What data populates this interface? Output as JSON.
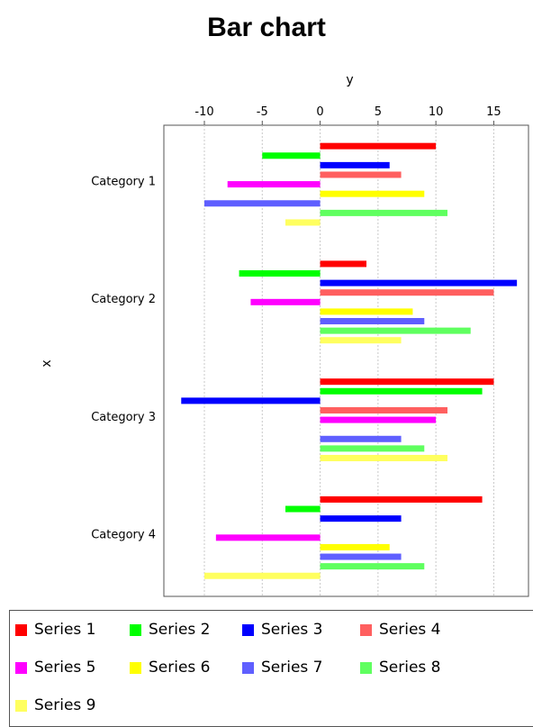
{
  "chart_data": {
    "type": "bar",
    "orientation": "horizontal",
    "title": "Bar chart",
    "xlabel": "x",
    "ylabel": "y",
    "value_axis_position": "top",
    "xlim": [
      -13.5,
      18
    ],
    "ticks": [
      -10,
      -5,
      0,
      5,
      10,
      15
    ],
    "grid": true,
    "legend_position": "bottom",
    "categories": [
      "Category 1",
      "Category 2",
      "Category 3",
      "Category 4"
    ],
    "series": [
      {
        "name": "Series 1",
        "color": "#ff0000",
        "values": [
          10,
          4,
          15,
          14
        ]
      },
      {
        "name": "Series 2",
        "color": "#00ff00",
        "values": [
          -5,
          -7,
          14,
          -3
        ]
      },
      {
        "name": "Series 3",
        "color": "#0000ff",
        "values": [
          6,
          17,
          -12,
          7
        ]
      },
      {
        "name": "Series 4",
        "color": "#ff5f5f",
        "values": [
          7,
          15,
          11,
          0
        ]
      },
      {
        "name": "Series 5",
        "color": "#ff00ff",
        "values": [
          -8,
          -6,
          10,
          -9
        ]
      },
      {
        "name": "Series 6",
        "color": "#ffff00",
        "values": [
          9,
          8,
          0,
          6
        ]
      },
      {
        "name": "Series 7",
        "color": "#5f5fff",
        "values": [
          -10,
          9,
          7,
          7
        ]
      },
      {
        "name": "Series 8",
        "color": "#5fff5f",
        "values": [
          11,
          13,
          9,
          9
        ]
      },
      {
        "name": "Series 9",
        "color": "#ffff5f",
        "values": [
          -3,
          7,
          11,
          -10
        ]
      }
    ]
  }
}
